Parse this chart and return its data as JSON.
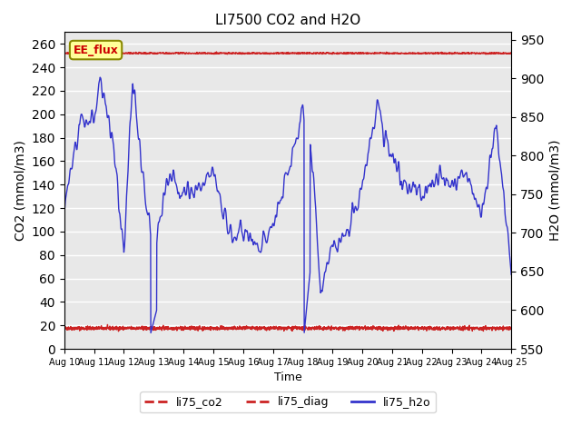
{
  "title": "LI7500 CO2 and H2O",
  "xlabel": "Time",
  "ylabel_left": "CO2 (mmol/m3)",
  "ylabel_right": "H2O (mmol/m3)",
  "ylim_left": [
    0,
    270
  ],
  "ylim_right": [
    550,
    960
  ],
  "xlim": [
    0,
    15
  ],
  "yticks_left": [
    0,
    20,
    40,
    60,
    80,
    100,
    120,
    140,
    160,
    180,
    200,
    220,
    240,
    260
  ],
  "yticks_right": [
    550,
    600,
    650,
    700,
    750,
    800,
    850,
    900,
    950
  ],
  "xtick_labels": [
    "Aug 10",
    "Aug 11",
    "Aug 12",
    "Aug 13",
    "Aug 14",
    "Aug 15",
    "Aug 16",
    "Aug 17",
    "Aug 18",
    "Aug 19",
    "Aug 20",
    "Aug 21",
    "Aug 22",
    "Aug 23",
    "Aug 24",
    "Aug 25"
  ],
  "background_color": "#e8e8e8",
  "grid_color": "#ffffff",
  "ee_flux_box_color": "#ffff99",
  "ee_flux_text_color": "#cc0000",
  "ee_flux_line_y": 252,
  "li75_co2_color": "#cc2222",
  "li75_diag_color": "#cc2222",
  "li75_h2o_color": "#3333cc",
  "legend_items": [
    "li75_co2",
    "li75_diag",
    "li75_h2o"
  ]
}
